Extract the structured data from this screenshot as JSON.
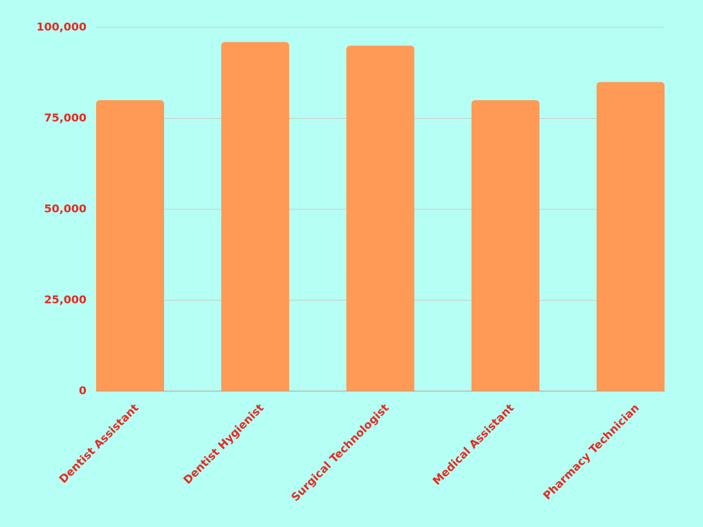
{
  "chart_data": {
    "type": "bar",
    "categories": [
      "Dentist Assistant",
      "Dentist Hygienist",
      "Surgical Technologist",
      "Medical Assistant",
      "Pharmacy Technician"
    ],
    "values": [
      80000,
      96000,
      95000,
      80000,
      85000
    ],
    "color": "#fe9a55",
    "ylim": [
      0,
      100000
    ],
    "yticks": [
      0,
      {
        "value": 25000,
        "label": "25,000"
      },
      {
        "value": 50000,
        "label": "50,000"
      },
      {
        "value": 75000,
        "label": "75,000"
      },
      {
        "value": 100000,
        "label": "100,000"
      }
    ],
    "grid": true
  }
}
